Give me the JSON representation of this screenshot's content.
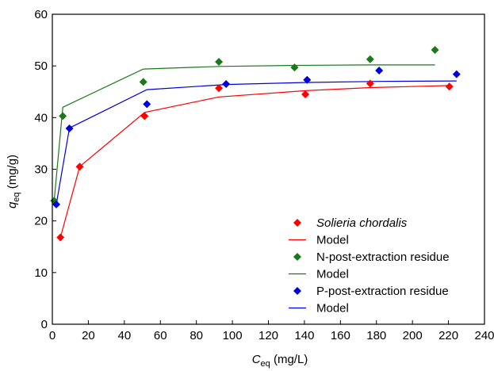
{
  "chart_data": {
    "type": "scatter",
    "xlabel": {
      "main": "C",
      "sub": "eq",
      "unit": " (mg/L)"
    },
    "ylabel": {
      "main": "q",
      "sub": "eq",
      "unit": " (mg/g)"
    },
    "xlim": [
      0,
      240
    ],
    "ylim": [
      0,
      60
    ],
    "xticks": [
      "0",
      "20",
      "40",
      "60",
      "80",
      "100",
      "120",
      "140",
      "160",
      "180",
      "200",
      "220",
      "240"
    ],
    "yticks": [
      "0",
      "10",
      "20",
      "30",
      "40",
      "50",
      "60"
    ],
    "grid": false,
    "legend_position": "bottom-right",
    "series": [
      {
        "name": "Solieria chordalis",
        "italic": true,
        "kind": "points",
        "color": "#ff0000",
        "points": [
          [
            4.5,
            16.8
          ],
          [
            15.2,
            30.5
          ],
          [
            51.2,
            40.3
          ],
          [
            92.5,
            45.7
          ],
          [
            140.5,
            44.5
          ],
          [
            176.5,
            46.6
          ],
          [
            220.5,
            46.0
          ]
        ]
      },
      {
        "name": "Model",
        "kind": "line",
        "color": "#ff0000",
        "points": [
          [
            4.5,
            16.8
          ],
          [
            15.2,
            30.5
          ],
          [
            51.2,
            41.0
          ],
          [
            92.5,
            44.0
          ],
          [
            140.5,
            45.2
          ],
          [
            176.5,
            45.8
          ],
          [
            220.5,
            46.2
          ]
        ]
      },
      {
        "name": "N-post-extraction residue",
        "kind": "points",
        "color": "#1a7a1a",
        "points": [
          [
            1.0,
            23.9
          ],
          [
            5.8,
            40.3
          ],
          [
            50.5,
            46.9
          ],
          [
            92.5,
            50.8
          ],
          [
            134.5,
            49.7
          ],
          [
            176.5,
            51.3
          ],
          [
            212.5,
            53.1
          ]
        ]
      },
      {
        "name": "Model",
        "kind": "line",
        "color": "#1a7a1a",
        "points": [
          [
            1.0,
            23.9
          ],
          [
            5.8,
            42.0
          ],
          [
            50.5,
            49.4
          ],
          [
            92.5,
            49.9
          ],
          [
            134.5,
            50.1
          ],
          [
            176.5,
            50.2
          ],
          [
            212.5,
            50.2
          ]
        ]
      },
      {
        "name": "P-post-extraction residue",
        "kind": "points",
        "color": "#0000dd",
        "points": [
          [
            2.2,
            23.2
          ],
          [
            9.5,
            37.9
          ],
          [
            52.5,
            42.6
          ],
          [
            96.5,
            46.5
          ],
          [
            141.5,
            47.3
          ],
          [
            181.5,
            49.1
          ],
          [
            224.5,
            48.4
          ]
        ]
      },
      {
        "name": "Model",
        "kind": "line",
        "color": "#0000dd",
        "points": [
          [
            2.2,
            23.2
          ],
          [
            9.5,
            38.0
          ],
          [
            52.5,
            45.4
          ],
          [
            96.5,
            46.4
          ],
          [
            141.5,
            46.8
          ],
          [
            181.5,
            47.0
          ],
          [
            224.5,
            47.1
          ]
        ]
      }
    ]
  }
}
